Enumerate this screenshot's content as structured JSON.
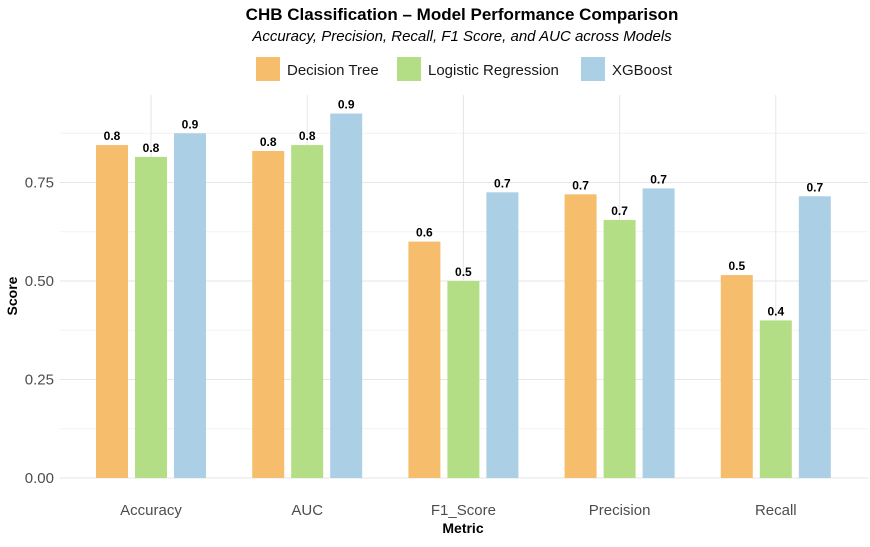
{
  "chart_data": {
    "type": "bar",
    "title": "CHB Classification – Model Performance Comparison",
    "subtitle": "Accuracy, Precision, Recall, F1 Score, and AUC across Models",
    "xlabel": "Metric",
    "ylabel": "Score",
    "categories": [
      "Accuracy",
      "AUC",
      "F1_Score",
      "Precision",
      "Recall"
    ],
    "ylim": [
      0,
      0.95
    ],
    "yticks": [
      0.0,
      0.25,
      0.5,
      0.75
    ],
    "ytick_labels": [
      "0.00",
      "0.25",
      "0.50",
      "0.75"
    ],
    "grid": true,
    "legend_position": "top",
    "series": [
      {
        "name": "Decision Tree",
        "color": "#f6be6c",
        "values": [
          0.845,
          0.83,
          0.6,
          0.72,
          0.515
        ],
        "labels": [
          "0.8",
          "0.8",
          "0.6",
          "0.7",
          "0.5"
        ]
      },
      {
        "name": "Logistic Regression",
        "color": "#b3de85",
        "values": [
          0.815,
          0.845,
          0.5,
          0.655,
          0.4
        ],
        "labels": [
          "0.8",
          "0.8",
          "0.5",
          "0.7",
          "0.4"
        ]
      },
      {
        "name": "XGBoost",
        "color": "#abcfe5",
        "values": [
          0.875,
          0.925,
          0.725,
          0.735,
          0.715
        ],
        "labels": [
          "0.9",
          "0.9",
          "0.7",
          "0.7",
          "0.7"
        ]
      }
    ]
  }
}
